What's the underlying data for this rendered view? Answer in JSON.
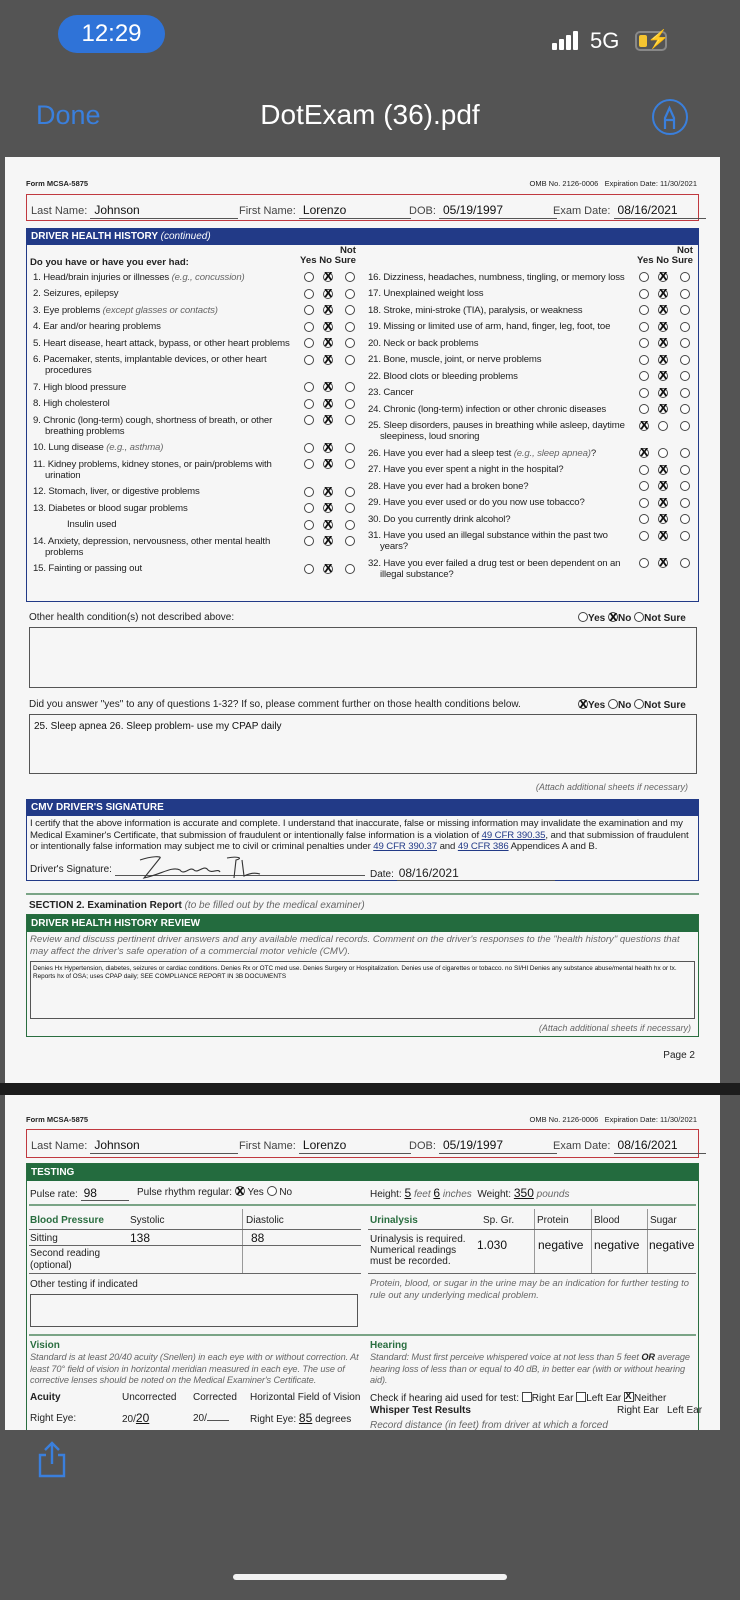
{
  "status_bar": {
    "time": "12:29",
    "network": "5G",
    "battery_level": 0.3,
    "charging": true,
    "colors": {
      "time_pill": "#2f73d8"
    }
  },
  "nav": {
    "done_label": "Done",
    "title": "DotExam (36).pdf",
    "markup_icon": "markup-pen-icon",
    "accent": "#3a7fdc"
  },
  "page1": {
    "form_id": "Form MCSA-5875",
    "omb": "OMB No. 2126-0006",
    "expiration": "Expiration Date: 11/30/2021",
    "patient": {
      "last_name_label": "Last Name:",
      "last_name": "Johnson",
      "first_name_label": "First Name:",
      "first_name": "Lorenzo",
      "dob_label": "DOB:",
      "dob": "05/19/1997",
      "exam_date_label": "Exam Date:",
      "exam_date": "08/16/2021"
    },
    "history": {
      "title": "DRIVER HEALTH HISTORY",
      "title_note": "(continued)",
      "question_prompt": "Do you have or have you ever had:",
      "col_yes": "Yes",
      "col_no": "No",
      "col_not": "Not",
      "col_sure": "Sure",
      "left": [
        {
          "text": "1. Head/brain injuries or illnesses",
          "note": "(e.g., concussion)",
          "answer": "no"
        },
        {
          "text": "2. Seizures, epilepsy",
          "answer": "no"
        },
        {
          "text": "3. Eye problems",
          "note": "(except glasses or contacts)",
          "answer": "no"
        },
        {
          "text": "4. Ear and/or hearing problems",
          "answer": "no"
        },
        {
          "text": "5. Heart disease, heart attack, bypass, or other heart problems",
          "answer": "no"
        },
        {
          "text": "6. Pacemaker, stents, implantable devices, or other heart procedures",
          "answer": "no"
        },
        {
          "text": "7. High blood pressure",
          "answer": "no"
        },
        {
          "text": "8. High cholesterol",
          "answer": "no"
        },
        {
          "text": "9. Chronic (long-term) cough, shortness of breath, or other breathing problems",
          "answer": "no"
        },
        {
          "text": "10. Lung disease",
          "note": "(e.g., asthma)",
          "answer": "no"
        },
        {
          "text": "11. Kidney problems, kidney stones, or pain/problems with urination",
          "answer": "no"
        },
        {
          "text": "12. Stomach, liver, or digestive problems",
          "answer": "no"
        },
        {
          "text": "13. Diabetes or blood sugar problems",
          "answer": "no"
        },
        {
          "text": "Insulin used",
          "answer": "no",
          "sub": true
        },
        {
          "text": "14. Anxiety, depression, nervousness, other mental health problems",
          "answer": "no"
        },
        {
          "text": "15. Fainting or passing out",
          "answer": "no"
        }
      ],
      "right": [
        {
          "text": "16. Dizziness, headaches, numbness, tingling, or memory loss",
          "answer": "no"
        },
        {
          "text": "17. Unexplained weight loss",
          "answer": "no"
        },
        {
          "text": "18. Stroke, mini-stroke (TIA), paralysis, or weakness",
          "answer": "no"
        },
        {
          "text": "19. Missing or limited use of arm, hand, finger, leg, foot, toe",
          "answer": "no"
        },
        {
          "text": "20. Neck or back problems",
          "answer": "no"
        },
        {
          "text": "21. Bone, muscle, joint, or nerve problems",
          "answer": "no"
        },
        {
          "text": "22. Blood clots or bleeding problems",
          "answer": "no"
        },
        {
          "text": "23. Cancer",
          "answer": "no"
        },
        {
          "text": "24. Chronic (long-term) infection or other chronic diseases",
          "answer": "no"
        },
        {
          "text": "25. Sleep disorders, pauses in breathing while asleep, daytime sleepiness, loud snoring",
          "answer": "yes"
        },
        {
          "text": "26. Have you ever had a sleep test",
          "note": "(e.g., sleep apnea)",
          "suffix": "?",
          "answer": "yes"
        },
        {
          "text": "27. Have you ever spent a night in the hospital?",
          "answer": "no"
        },
        {
          "text": "28. Have you ever had a broken bone?",
          "answer": "no"
        },
        {
          "text": "29. Have you ever used or do you now use tobacco?",
          "answer": "no"
        },
        {
          "text": "30. Do you currently drink alcohol?",
          "answer": "no"
        },
        {
          "text": "31. Have you used an illegal substance within the past two years?",
          "answer": "no"
        },
        {
          "text": "32. Have you ever failed a drug test or been dependent on an illegal substance?",
          "answer": "no"
        }
      ]
    },
    "other_conditions": {
      "label": "Other health condition(s) not described above:",
      "answer": "no",
      "yes": "Yes",
      "no": "No",
      "not_sure": "Not Sure",
      "value": ""
    },
    "yes_comment": {
      "label": "Did you answer \"yes\" to any of questions 1-32? If so, please comment further on those health conditions below.",
      "answer": "yes",
      "yes": "Yes",
      "no": "No",
      "not_sure": "Not Sure",
      "value": "25. Sleep apnea  26. Sleep problem- use my CPAP daily"
    },
    "attach_note": "(Attach additional sheets if necessary)",
    "signature": {
      "title": "CMV DRIVER'S SIGNATURE",
      "text1": "I certify that the above information is accurate and complete. I understand that inaccurate, false or missing information may invalidate the examination and my Medical Examiner's Certificate, that submission of fraudulent or intentionally false information is a violation of ",
      "link1": "49 CFR 390.35",
      "text2": ", and that submission of fraudulent or intentionally false information may subject me to civil or criminal penalties under ",
      "link2": "49 CFR 390.37",
      "text3": " and ",
      "link3": "49 CFR 386",
      "text4": " Appendices A and B.",
      "sig_label": "Driver's Signature:",
      "signature_text": "Lorenzo Johnson",
      "date_label": "Date:",
      "date": "08/16/2021"
    },
    "section2": {
      "title": "SECTION 2. Examination Report",
      "note": "(to be filled out by the medical examiner)",
      "review_title": "DRIVER HEALTH HISTORY REVIEW",
      "review_instructions": "Review and discuss pertinent driver answers and any available medical records. Comment on the driver's responses to the \"health history\" questions that may affect the driver's safe operation of a commercial motor vehicle (CMV).",
      "review_line1": "Denies Hx Hypertension, diabetes, seizures or cardiac conditions.  Denies Rx or OTC med use. Denies Surgery or Hospitalization. Denies use of cigarettes or tobacco. no SI/HI Denies any substance abuse/mental health hx or tx.",
      "review_line2": "Reports hx of OSA; uses CPAP daily; SEE COMPLIANCE REPORT IN 3B DOCUMENTS",
      "attach_note": "(Attach additional sheets if necessary)"
    },
    "page_label": "Page 2"
  },
  "page2": {
    "form_id": "Form MCSA-5875",
    "omb": "OMB No. 2126-0006",
    "expiration": "Expiration Date: 11/30/2021",
    "patient": {
      "last_name_label": "Last Name:",
      "last_name": "Johnson",
      "first_name_label": "First Name:",
      "first_name": "Lorenzo",
      "dob_label": "DOB:",
      "dob": "05/19/1997",
      "exam_date_label": "Exam Date:",
      "exam_date": "08/16/2021"
    },
    "testing": {
      "title": "TESTING",
      "pulse_label": "Pulse rate:",
      "pulse": "98",
      "rhythm_label": "Pulse rhythm regular:",
      "rhythm_answer": "yes",
      "yes": "Yes",
      "no": "No",
      "height_label": "Height:",
      "height_ft": "5",
      "feet": "feet",
      "height_in": "6",
      "inches": "inches",
      "weight_label": "Weight:",
      "weight": "350",
      "pounds": "pounds",
      "bp": {
        "title": "Blood Pressure",
        "systolic": "Systolic",
        "diastolic": "Diastolic",
        "sitting": "Sitting",
        "sitting_sys": "138",
        "sitting_dia": "88",
        "second": "Second reading (optional)",
        "second_sys": "",
        "second_dia": ""
      },
      "urinalysis": {
        "title": "Urinalysis",
        "sp_gr": "Sp. Gr.",
        "protein": "Protein",
        "blood": "Blood",
        "sugar": "Sugar",
        "note": "Urinalysis is required. Numerical readings must be recorded.",
        "sp_gr_val": "1.030",
        "protein_val": "negative",
        "blood_val": "negative",
        "sugar_val": "negative",
        "footnote": "Protein, blood, or sugar in the urine may be an indication for further testing to rule out any underlying medical problem."
      },
      "other_label": "Other testing if indicated",
      "other_value": "",
      "vision": {
        "title": "Vision",
        "standard": "Standard is at least 20/40 acuity (Snellen) in each eye with or without correction. At least 70° field of vision in horizontal meridian measured in each eye. The use of corrective lenses should be noted on the Medical Examiner's Certificate.",
        "acuity": "Acuity",
        "uncorrected": "Uncorrected",
        "corrected": "Corrected",
        "hfov": "Horizontal Field of Vision",
        "right_eye": "Right Eye:",
        "re_uncorrected_prefix": "20/",
        "re_uncorrected": "20",
        "re_corrected_prefix": "20/",
        "re_corrected": "",
        "re_field_label": "Right Eye:",
        "re_field": "85",
        "degrees": "degrees"
      },
      "hearing": {
        "title": "Hearing",
        "standard_a": "Standard: Must first perceive whispered voice at not less than 5 feet ",
        "standard_or": "OR",
        "standard_b": " average hearing loss of less than or equal to 40 dB, in better ear (with or without hearing aid).",
        "aid_label": "Check if hearing aid used for test:",
        "right_ear": "Right Ear",
        "left_ear": "Left Ear",
        "neither": "Neither",
        "aid_answer": "neither",
        "whisper": "Whisper Test Results",
        "col_right": "Right Ear",
        "col_left": "Left Ear",
        "record": "Record distance (in feet) from driver at which a forced"
      }
    }
  }
}
